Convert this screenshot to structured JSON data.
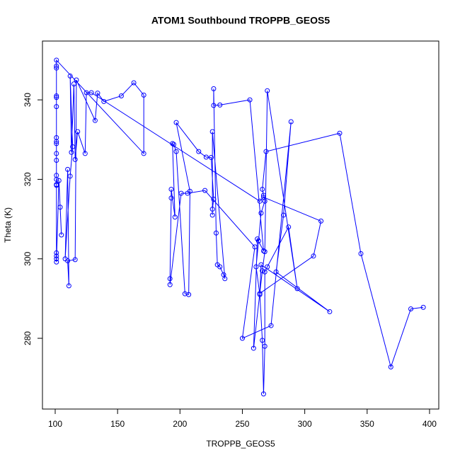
{
  "chart_data": {
    "type": "line",
    "title": "ATOM1 Southbound TROPPB_GEOS5",
    "x_label": "TROPPB_GEOS5",
    "y_label": "Theta (K)",
    "color": "#0000ff",
    "markers": true,
    "grid": false,
    "xlim": [
      89.8,
      407.4
    ],
    "ylim": [
      262.2,
      354.8
    ],
    "xticks": [
      100,
      150,
      200,
      250,
      300,
      350,
      400
    ],
    "yticks": [
      280,
      300,
      320,
      340
    ],
    "x": [
      395,
      385,
      369,
      345,
      328,
      269,
      266,
      267,
      268,
      265,
      263,
      261,
      264,
      266,
      267,
      268,
      268,
      270,
      287,
      294,
      270,
      268,
      266,
      259,
      262,
      267,
      256,
      232,
      227,
      227,
      229,
      230,
      232,
      235,
      236,
      226,
      226,
      226,
      227,
      225,
      221,
      215,
      197,
      208,
      207,
      204,
      197,
      195,
      194,
      196,
      193,
      193,
      192,
      192,
      201,
      206,
      220,
      260,
      250,
      273,
      289,
      283,
      277,
      320,
      265,
      264,
      307,
      313,
      267,
      264,
      129,
      125,
      124,
      118,
      116,
      115,
      113,
      112,
      114,
      112,
      108,
      110,
      111,
      110,
      116,
      117,
      132,
      134,
      139,
      153,
      163,
      171,
      171,
      101,
      101,
      101,
      101,
      101,
      101,
      101,
      101,
      101,
      101,
      101,
      101,
      101,
      101,
      101,
      101,
      101,
      101,
      101,
      103,
      105,
      104
    ],
    "values": [
      287.8,
      287.4,
      272.8,
      301.3,
      331.6,
      327,
      317.5,
      316,
      314.5,
      311.5,
      304.5,
      298,
      291,
      279.5,
      266,
      278,
      296.7,
      298,
      308,
      292.5,
      342.3,
      301.8,
      297,
      277.5,
      305,
      302,
      340,
      338.7,
      338.6,
      342.8,
      306.5,
      298.5,
      298,
      296,
      295,
      332,
      311,
      312.5,
      315,
      325.5,
      325.6,
      327,
      334.3,
      317,
      291,
      291.2,
      327,
      328.8,
      329,
      310.5,
      317.5,
      315.3,
      295,
      293.5,
      316.5,
      316.5,
      317.2,
      303,
      280,
      283.2,
      334.5,
      311,
      296.7,
      286.7,
      298.5,
      291.3,
      300.7,
      309.5,
      315.5,
      314.5,
      341.8,
      341.8,
      326.5,
      332,
      325,
      344,
      326.8,
      346,
      328.2,
      320.8,
      300,
      322.5,
      293.2,
      299.5,
      299.8,
      345,
      334.8,
      341.7,
      339.6,
      341,
      344.3,
      341.2,
      326.5,
      350,
      348.5,
      348,
      341,
      340.6,
      338.3,
      330.5,
      329.5,
      329,
      326.5,
      324.8,
      321,
      320,
      318.7,
      318.5,
      301.5,
      300.7,
      300,
      299.2,
      319.7,
      306,
      313
    ]
  }
}
